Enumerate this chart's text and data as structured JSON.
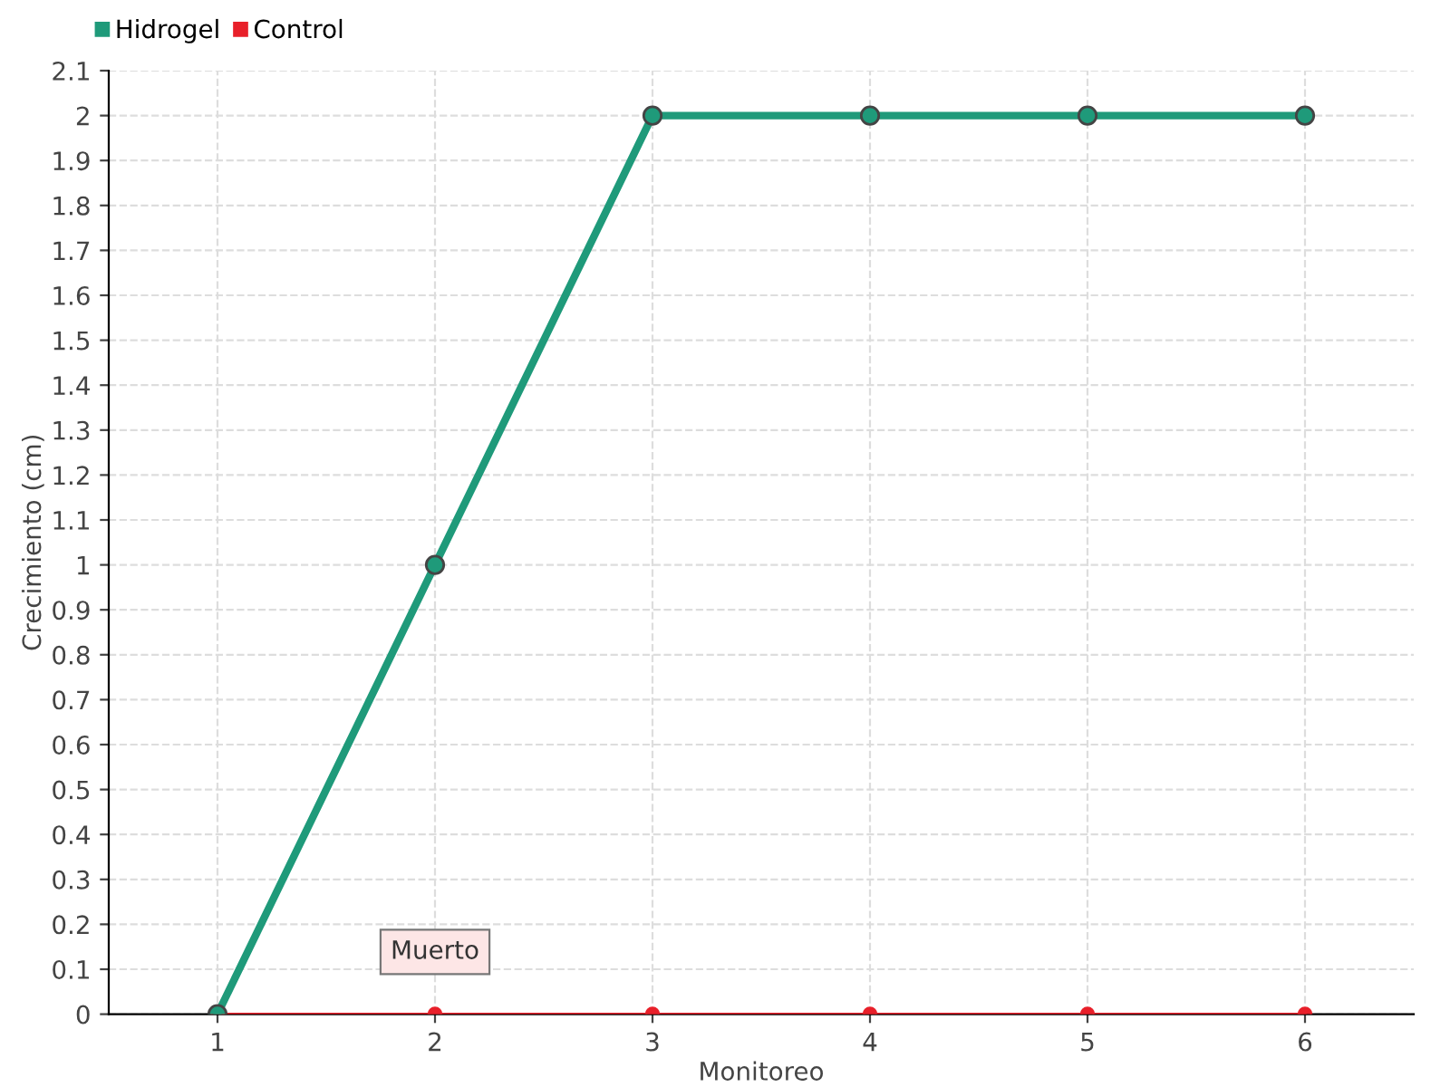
{
  "chart_data": {
    "type": "line",
    "xlabel": "Monitoreo",
    "ylabel": "Crecimiento (cm)",
    "categories": [
      "1",
      "2",
      "3",
      "4",
      "5",
      "6"
    ],
    "series": [
      {
        "name": "Hidrogel",
        "color": "#1f9a7a",
        "values": [
          0,
          1,
          2,
          2,
          2,
          2
        ]
      },
      {
        "name": "Control",
        "color": "#e8202a",
        "values": [
          0,
          0,
          0,
          0,
          0,
          0
        ]
      }
    ],
    "ylim": [
      0,
      2.1
    ],
    "yticks": [
      0,
      0.1,
      0.2,
      0.3,
      0.4,
      0.5,
      0.6,
      0.7,
      0.8,
      0.9,
      1,
      1.1,
      1.2,
      1.3,
      1.4,
      1.5,
      1.6,
      1.7,
      1.8,
      1.9,
      2,
      2.1
    ],
    "grid": true,
    "legend": "top left",
    "marker": "circle",
    "line_style": "solid",
    "annotations": [
      {
        "text": "Muerto",
        "x": "2",
        "y": 0
      }
    ]
  }
}
